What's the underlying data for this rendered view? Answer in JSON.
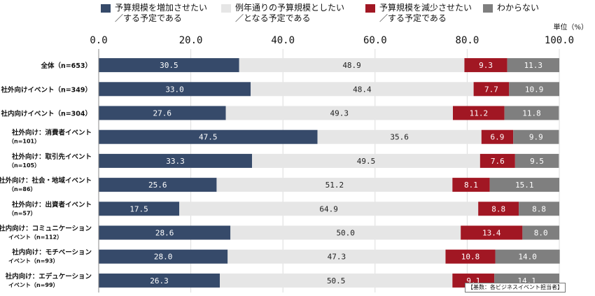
{
  "legend": [
    {
      "label_1": "予算規模を増加させたい",
      "label_2": "／する予定である",
      "color": "#364a6a"
    },
    {
      "label_1": "例年通りの予算規模としたい",
      "label_2": "／となる予定である",
      "color": "#e6e6e6"
    },
    {
      "label_1": "予算規模を減少させたい",
      "label_2": "／する予定である",
      "color": "#a11723"
    },
    {
      "label_1": "わからない",
      "label_2": "",
      "color": "#7f7f7f"
    }
  ],
  "unit_label": "単位（%）",
  "base_note": "【基数：各ビジネスイベント担当者】",
  "chart_data": {
    "type": "stacked-bar-horizontal",
    "xlim": [
      0,
      100
    ],
    "xticks": [
      "0.0",
      "20.0",
      "40.0",
      "60.0",
      "80.0",
      "100.0"
    ],
    "categories": [
      {
        "label_1": "全体（n=653）",
        "label_2": ""
      },
      {
        "label_1": "社外向けイベント（n=349）",
        "label_2": ""
      },
      {
        "label_1": "社内向けイベント（n=304）",
        "label_2": ""
      },
      {
        "label_1": "社外向け：消費者イベント",
        "label_2": "（n=101）"
      },
      {
        "label_1": "社外向け：取引先イベント",
        "label_2": "（n=105）"
      },
      {
        "label_1": "社外向け：社会・地域イベント",
        "label_2": "（n=86）"
      },
      {
        "label_1": "社外向け：出資者イベント",
        "label_2": "（n=57）"
      },
      {
        "label_1": "社内向け：コミュニケーション",
        "label_2": "イベント（n=112）"
      },
      {
        "label_1": "社内向け：モチベーション",
        "label_2": "イベント（n=93）"
      },
      {
        "label_1": "社内向け：エデュケーション",
        "label_2": "イベント（n=99）"
      }
    ],
    "series": [
      {
        "name": "増加",
        "color": "#364a6a",
        "label_color": "#ffffff",
        "values": [
          30.5,
          33.0,
          27.6,
          47.5,
          33.3,
          25.6,
          17.5,
          28.6,
          28.0,
          26.3
        ],
        "labels": [
          "30.5",
          "33.0",
          "27.6",
          "47.5",
          "33.3",
          "25.6",
          "17.5",
          "28.6",
          "28.0",
          "26.3"
        ]
      },
      {
        "name": "例年通り",
        "color": "#e6e6e6",
        "label_color": "#222222",
        "values": [
          48.9,
          48.4,
          49.3,
          35.6,
          49.5,
          51.2,
          64.9,
          50.0,
          47.3,
          50.5
        ],
        "labels": [
          "48.9",
          "48.4",
          "49.3",
          "35.6",
          "49.5",
          "51.2",
          "64.9",
          "50.0",
          "47.3",
          "50.5"
        ]
      },
      {
        "name": "減少",
        "color": "#a11723",
        "label_color": "#ffffff",
        "values": [
          9.3,
          7.7,
          11.2,
          6.9,
          7.6,
          8.1,
          8.8,
          13.4,
          10.8,
          9.1
        ],
        "labels": [
          "9.3",
          "7.7",
          "11.2",
          "6.9",
          "7.6",
          "8.1",
          "8.8",
          "13.4",
          "10.8",
          "9.1"
        ]
      },
      {
        "name": "わからない",
        "color": "#7f7f7f",
        "label_color": "#ffffff",
        "values": [
          11.3,
          10.9,
          11.8,
          9.9,
          9.5,
          15.1,
          8.8,
          8.0,
          14.0,
          14.1
        ],
        "labels": [
          "11.3",
          "10.9",
          "11.8",
          "9.9",
          "9.5",
          "15.1",
          "8.8",
          "8.0",
          "14.0",
          "14.1"
        ]
      }
    ]
  }
}
